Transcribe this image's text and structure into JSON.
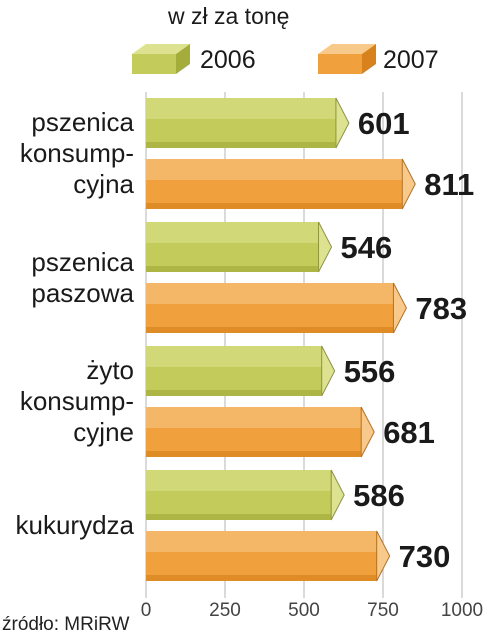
{
  "chart_data": {
    "type": "bar",
    "orientation": "horizontal",
    "unit_label": "w zł za tonę",
    "categories": [
      "pszenica\nkonsump-\ncyjna",
      "pszenica\npaszowa",
      "żyto\nkonsump-\ncyjne",
      "kukurydza"
    ],
    "series": [
      {
        "name": "2006",
        "values": [
          601,
          546,
          556,
          586
        ],
        "color": "#c3cc5a"
      },
      {
        "name": "2007",
        "values": [
          811,
          783,
          681,
          730
        ],
        "color": "#f0a03c"
      }
    ],
    "xlim": [
      0,
      1000
    ],
    "xticks": [
      0,
      250,
      500,
      750,
      1000
    ],
    "xtick_labels": [
      "0",
      "250",
      "500",
      "750",
      "1000"
    ],
    "legend": "top",
    "grid": true
  },
  "source": "źródło: MRiRW"
}
